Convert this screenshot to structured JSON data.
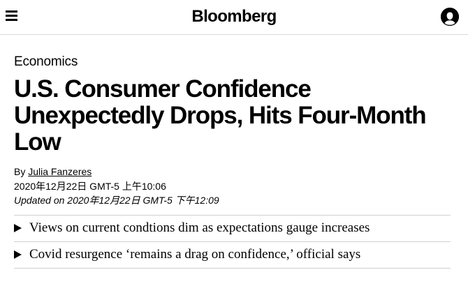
{
  "header": {
    "logo": "Bloomberg",
    "menu_icon": "hamburger-menu-icon",
    "account_icon": "user-account-icon"
  },
  "article": {
    "section": "Economics",
    "headline": "U.S. Consumer Confidence Unexpectedly Drops, Hits Four-Month Low",
    "byline_prefix": "By",
    "author": "Julia Fanzeres",
    "published": "2020年12月22日 GMT-5 上午10:06",
    "updated": "Updated on 2020年12月22日 GMT-5 下午12:09",
    "takeaways": [
      "Views on current condtions dim as expectations gauge increases",
      "Covid resurgence ‘remains a drag on confidence,’ official says"
    ]
  }
}
